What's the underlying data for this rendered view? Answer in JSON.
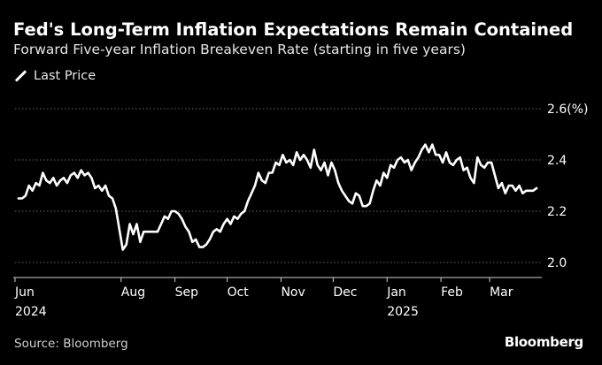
{
  "header": {
    "title": "Fed's Long-Term Inflation Expectations Remain Contained",
    "subtitle": "Forward Five-year Inflation Breakeven Rate (starting in five years)"
  },
  "legend": {
    "label": "Last Price"
  },
  "footer": {
    "source": "Source: Bloomberg",
    "brand": "Bloomberg"
  },
  "colors": {
    "background": "#000000",
    "line": "#ffffff",
    "grid": "#6a6a6a",
    "text": "#ffffff"
  },
  "chart_data": {
    "type": "line",
    "title": "Fed's Long-Term Inflation Expectations Remain Contained",
    "subtitle": "Forward Five-year Inflation Breakeven Rate (starting in five years)",
    "xlabel": "",
    "ylabel": "",
    "ylim": [
      2.0,
      2.6
    ],
    "yticks": [
      {
        "value": 2.0,
        "label": "2.0"
      },
      {
        "value": 2.2,
        "label": "2.2"
      },
      {
        "value": 2.4,
        "label": "2.4"
      },
      {
        "value": 2.6,
        "label": "2.6(%)"
      }
    ],
    "xlim": [
      "2024-06-01",
      "2025-03-31"
    ],
    "xticks": [
      {
        "date": "2024-06-01",
        "label": "Jun",
        "sublabel": "2024"
      },
      {
        "date": "2024-08-01",
        "label": "Aug",
        "sublabel": ""
      },
      {
        "date": "2024-09-01",
        "label": "Sep",
        "sublabel": ""
      },
      {
        "date": "2024-10-01",
        "label": "Oct",
        "sublabel": ""
      },
      {
        "date": "2024-11-01",
        "label": "Nov",
        "sublabel": ""
      },
      {
        "date": "2024-12-01",
        "label": "Dec",
        "sublabel": ""
      },
      {
        "date": "2025-01-01",
        "label": "Jan",
        "sublabel": "2025"
      },
      {
        "date": "2025-02-01",
        "label": "Feb",
        "sublabel": ""
      },
      {
        "date": "2025-03-01",
        "label": "Mar",
        "sublabel": ""
      }
    ],
    "grid": true,
    "legend_position": "top-left",
    "series": [
      {
        "name": "Last Price",
        "points": [
          [
            "2024-06-03",
            2.25
          ],
          [
            "2024-06-05",
            2.25
          ],
          [
            "2024-06-07",
            2.26
          ],
          [
            "2024-06-09",
            2.3
          ],
          [
            "2024-06-11",
            2.28
          ],
          [
            "2024-06-13",
            2.31
          ],
          [
            "2024-06-15",
            2.3
          ],
          [
            "2024-06-17",
            2.35
          ],
          [
            "2024-06-19",
            2.32
          ],
          [
            "2024-06-21",
            2.31
          ],
          [
            "2024-06-23",
            2.33
          ],
          [
            "2024-06-25",
            2.3
          ],
          [
            "2024-06-27",
            2.32
          ],
          [
            "2024-06-29",
            2.33
          ],
          [
            "2024-07-01",
            2.31
          ],
          [
            "2024-07-03",
            2.34
          ],
          [
            "2024-07-05",
            2.35
          ],
          [
            "2024-07-07",
            2.33
          ],
          [
            "2024-07-09",
            2.36
          ],
          [
            "2024-07-11",
            2.34
          ],
          [
            "2024-07-13",
            2.35
          ],
          [
            "2024-07-15",
            2.33
          ],
          [
            "2024-07-17",
            2.29
          ],
          [
            "2024-07-19",
            2.3
          ],
          [
            "2024-07-21",
            2.28
          ],
          [
            "2024-07-23",
            2.3
          ],
          [
            "2024-07-25",
            2.26
          ],
          [
            "2024-07-27",
            2.25
          ],
          [
            "2024-07-29",
            2.21
          ],
          [
            "2024-07-31",
            2.13
          ],
          [
            "2024-08-02",
            2.05
          ],
          [
            "2024-08-04",
            2.07
          ],
          [
            "2024-08-06",
            2.15
          ],
          [
            "2024-08-08",
            2.11
          ],
          [
            "2024-08-10",
            2.15
          ],
          [
            "2024-08-12",
            2.08
          ],
          [
            "2024-08-14",
            2.12
          ],
          [
            "2024-08-16",
            2.12
          ],
          [
            "2024-08-18",
            2.12
          ],
          [
            "2024-08-20",
            2.12
          ],
          [
            "2024-08-22",
            2.12
          ],
          [
            "2024-08-24",
            2.15
          ],
          [
            "2024-08-26",
            2.18
          ],
          [
            "2024-08-28",
            2.17
          ],
          [
            "2024-08-30",
            2.2
          ],
          [
            "2024-09-01",
            2.2
          ],
          [
            "2024-09-03",
            2.19
          ],
          [
            "2024-09-05",
            2.17
          ],
          [
            "2024-09-07",
            2.14
          ],
          [
            "2024-09-09",
            2.12
          ],
          [
            "2024-09-11",
            2.08
          ],
          [
            "2024-09-13",
            2.09
          ],
          [
            "2024-09-15",
            2.06
          ],
          [
            "2024-09-17",
            2.06
          ],
          [
            "2024-09-19",
            2.07
          ],
          [
            "2024-09-21",
            2.09
          ],
          [
            "2024-09-23",
            2.12
          ],
          [
            "2024-09-25",
            2.13
          ],
          [
            "2024-09-27",
            2.12
          ],
          [
            "2024-09-29",
            2.15
          ],
          [
            "2024-10-01",
            2.17
          ],
          [
            "2024-10-03",
            2.15
          ],
          [
            "2024-10-05",
            2.18
          ],
          [
            "2024-10-07",
            2.17
          ],
          [
            "2024-10-09",
            2.19
          ],
          [
            "2024-10-11",
            2.2
          ],
          [
            "2024-10-13",
            2.24
          ],
          [
            "2024-10-15",
            2.27
          ],
          [
            "2024-10-17",
            2.3
          ],
          [
            "2024-10-19",
            2.35
          ],
          [
            "2024-10-21",
            2.32
          ],
          [
            "2024-10-23",
            2.31
          ],
          [
            "2024-10-25",
            2.35
          ],
          [
            "2024-10-27",
            2.35
          ],
          [
            "2024-10-29",
            2.39
          ],
          [
            "2024-10-31",
            2.38
          ],
          [
            "2024-11-02",
            2.42
          ],
          [
            "2024-11-04",
            2.39
          ],
          [
            "2024-11-06",
            2.4
          ],
          [
            "2024-11-08",
            2.38
          ],
          [
            "2024-11-10",
            2.43
          ],
          [
            "2024-11-12",
            2.4
          ],
          [
            "2024-11-14",
            2.42
          ],
          [
            "2024-11-16",
            2.4
          ],
          [
            "2024-11-18",
            2.37
          ],
          [
            "2024-11-20",
            2.44
          ],
          [
            "2024-11-22",
            2.38
          ],
          [
            "2024-11-24",
            2.36
          ],
          [
            "2024-11-26",
            2.39
          ],
          [
            "2024-11-28",
            2.34
          ],
          [
            "2024-11-30",
            2.39
          ],
          [
            "2024-12-02",
            2.36
          ],
          [
            "2024-12-04",
            2.31
          ],
          [
            "2024-12-06",
            2.28
          ],
          [
            "2024-12-08",
            2.26
          ],
          [
            "2024-12-10",
            2.24
          ],
          [
            "2024-12-12",
            2.23
          ],
          [
            "2024-12-14",
            2.27
          ],
          [
            "2024-12-16",
            2.26
          ],
          [
            "2024-12-18",
            2.22
          ],
          [
            "2024-12-20",
            2.22
          ],
          [
            "2024-12-22",
            2.23
          ],
          [
            "2024-12-24",
            2.28
          ],
          [
            "2024-12-26",
            2.32
          ],
          [
            "2024-12-28",
            2.3
          ],
          [
            "2024-12-30",
            2.35
          ],
          [
            "2025-01-01",
            2.33
          ],
          [
            "2025-01-03",
            2.38
          ],
          [
            "2025-01-05",
            2.37
          ],
          [
            "2025-01-07",
            2.4
          ],
          [
            "2025-01-09",
            2.41
          ],
          [
            "2025-01-11",
            2.39
          ],
          [
            "2025-01-13",
            2.4
          ],
          [
            "2025-01-15",
            2.36
          ],
          [
            "2025-01-17",
            2.39
          ],
          [
            "2025-01-19",
            2.41
          ],
          [
            "2025-01-21",
            2.44
          ],
          [
            "2025-01-23",
            2.46
          ],
          [
            "2025-01-25",
            2.43
          ],
          [
            "2025-01-27",
            2.46
          ],
          [
            "2025-01-29",
            2.42
          ],
          [
            "2025-01-31",
            2.42
          ],
          [
            "2025-02-02",
            2.39
          ],
          [
            "2025-02-04",
            2.43
          ],
          [
            "2025-02-06",
            2.39
          ],
          [
            "2025-02-08",
            2.38
          ],
          [
            "2025-02-10",
            2.4
          ],
          [
            "2025-02-12",
            2.41
          ],
          [
            "2025-02-14",
            2.36
          ],
          [
            "2025-02-16",
            2.37
          ],
          [
            "2025-02-18",
            2.33
          ],
          [
            "2025-02-20",
            2.31
          ],
          [
            "2025-02-22",
            2.41
          ],
          [
            "2025-02-24",
            2.38
          ],
          [
            "2025-02-26",
            2.37
          ],
          [
            "2025-02-28",
            2.39
          ],
          [
            "2025-03-02",
            2.39
          ],
          [
            "2025-03-04",
            2.34
          ],
          [
            "2025-03-06",
            2.29
          ],
          [
            "2025-03-08",
            2.31
          ],
          [
            "2025-03-10",
            2.27
          ],
          [
            "2025-03-12",
            2.3
          ],
          [
            "2025-03-14",
            2.3
          ],
          [
            "2025-03-16",
            2.28
          ],
          [
            "2025-03-18",
            2.3
          ],
          [
            "2025-03-20",
            2.27
          ],
          [
            "2025-03-22",
            2.28
          ],
          [
            "2025-03-24",
            2.28
          ],
          [
            "2025-03-26",
            2.28
          ],
          [
            "2025-03-28",
            2.29
          ]
        ]
      }
    ]
  }
}
